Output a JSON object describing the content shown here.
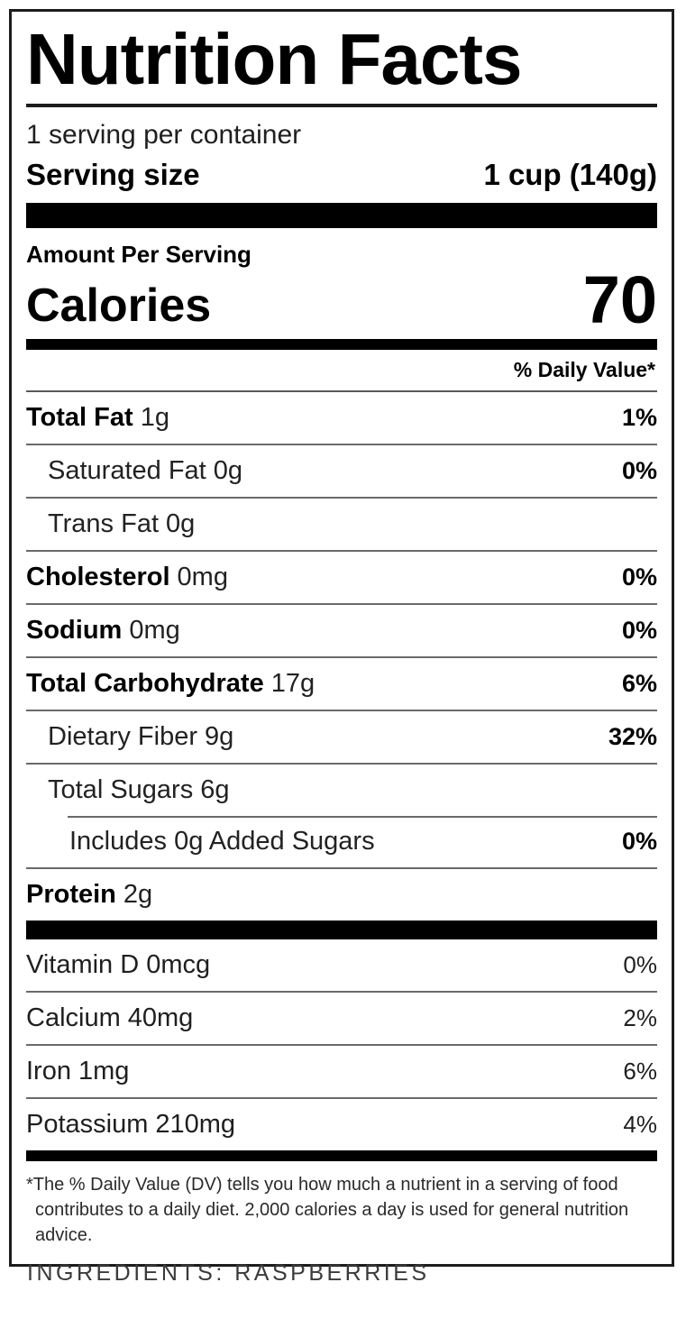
{
  "label": {
    "title": "Nutrition Facts",
    "servings_per_container": "1 serving per container",
    "serving_size_label": "Serving size",
    "serving_size_value": "1 cup (140g)",
    "amount_per_serving": "Amount Per Serving",
    "calories_label": "Calories",
    "calories_value": "70",
    "daily_value_header": "% Daily Value*",
    "nutrients": [
      {
        "name": "Total Fat",
        "amount": "1g",
        "dv": "1%"
      },
      {
        "name": "Saturated Fat",
        "amount": "0g",
        "dv": "0%"
      },
      {
        "name": "Trans Fat",
        "amount": "0g",
        "dv": ""
      },
      {
        "name": "Cholesterol",
        "amount": "0mg",
        "dv": "0%"
      },
      {
        "name": "Sodium",
        "amount": "0mg",
        "dv": "0%"
      },
      {
        "name": "Total Carbohydrate",
        "amount": "17g",
        "dv": "6%"
      },
      {
        "name": "Dietary Fiber",
        "amount": "9g",
        "dv": "32%"
      },
      {
        "name": "Total Sugars",
        "amount": "6g",
        "dv": ""
      },
      {
        "name": "Includes 0g Added Sugars",
        "amount": "",
        "dv": "0%"
      },
      {
        "name": "Protein",
        "amount": "2g",
        "dv": ""
      }
    ],
    "vitamins": [
      {
        "name": "Vitamin D",
        "amount": "0mcg",
        "dv": "0%"
      },
      {
        "name": "Calcium",
        "amount": "40mg",
        "dv": "2%"
      },
      {
        "name": "Iron",
        "amount": "1mg",
        "dv": "6%"
      },
      {
        "name": "Potassium",
        "amount": "210mg",
        "dv": "4%"
      }
    ],
    "footnote": "*The % Daily Value (DV) tells you how much a nutrient in a serving of food contributes to a daily diet. 2,000 calories a day is used for general nutrition advice.",
    "colors": {
      "text": "#000000",
      "rule": "#6a6a6a",
      "bar": "#000000",
      "background": "#ffffff"
    }
  },
  "ingredients_line": "INGREDIENTS: RASPBERRIES"
}
